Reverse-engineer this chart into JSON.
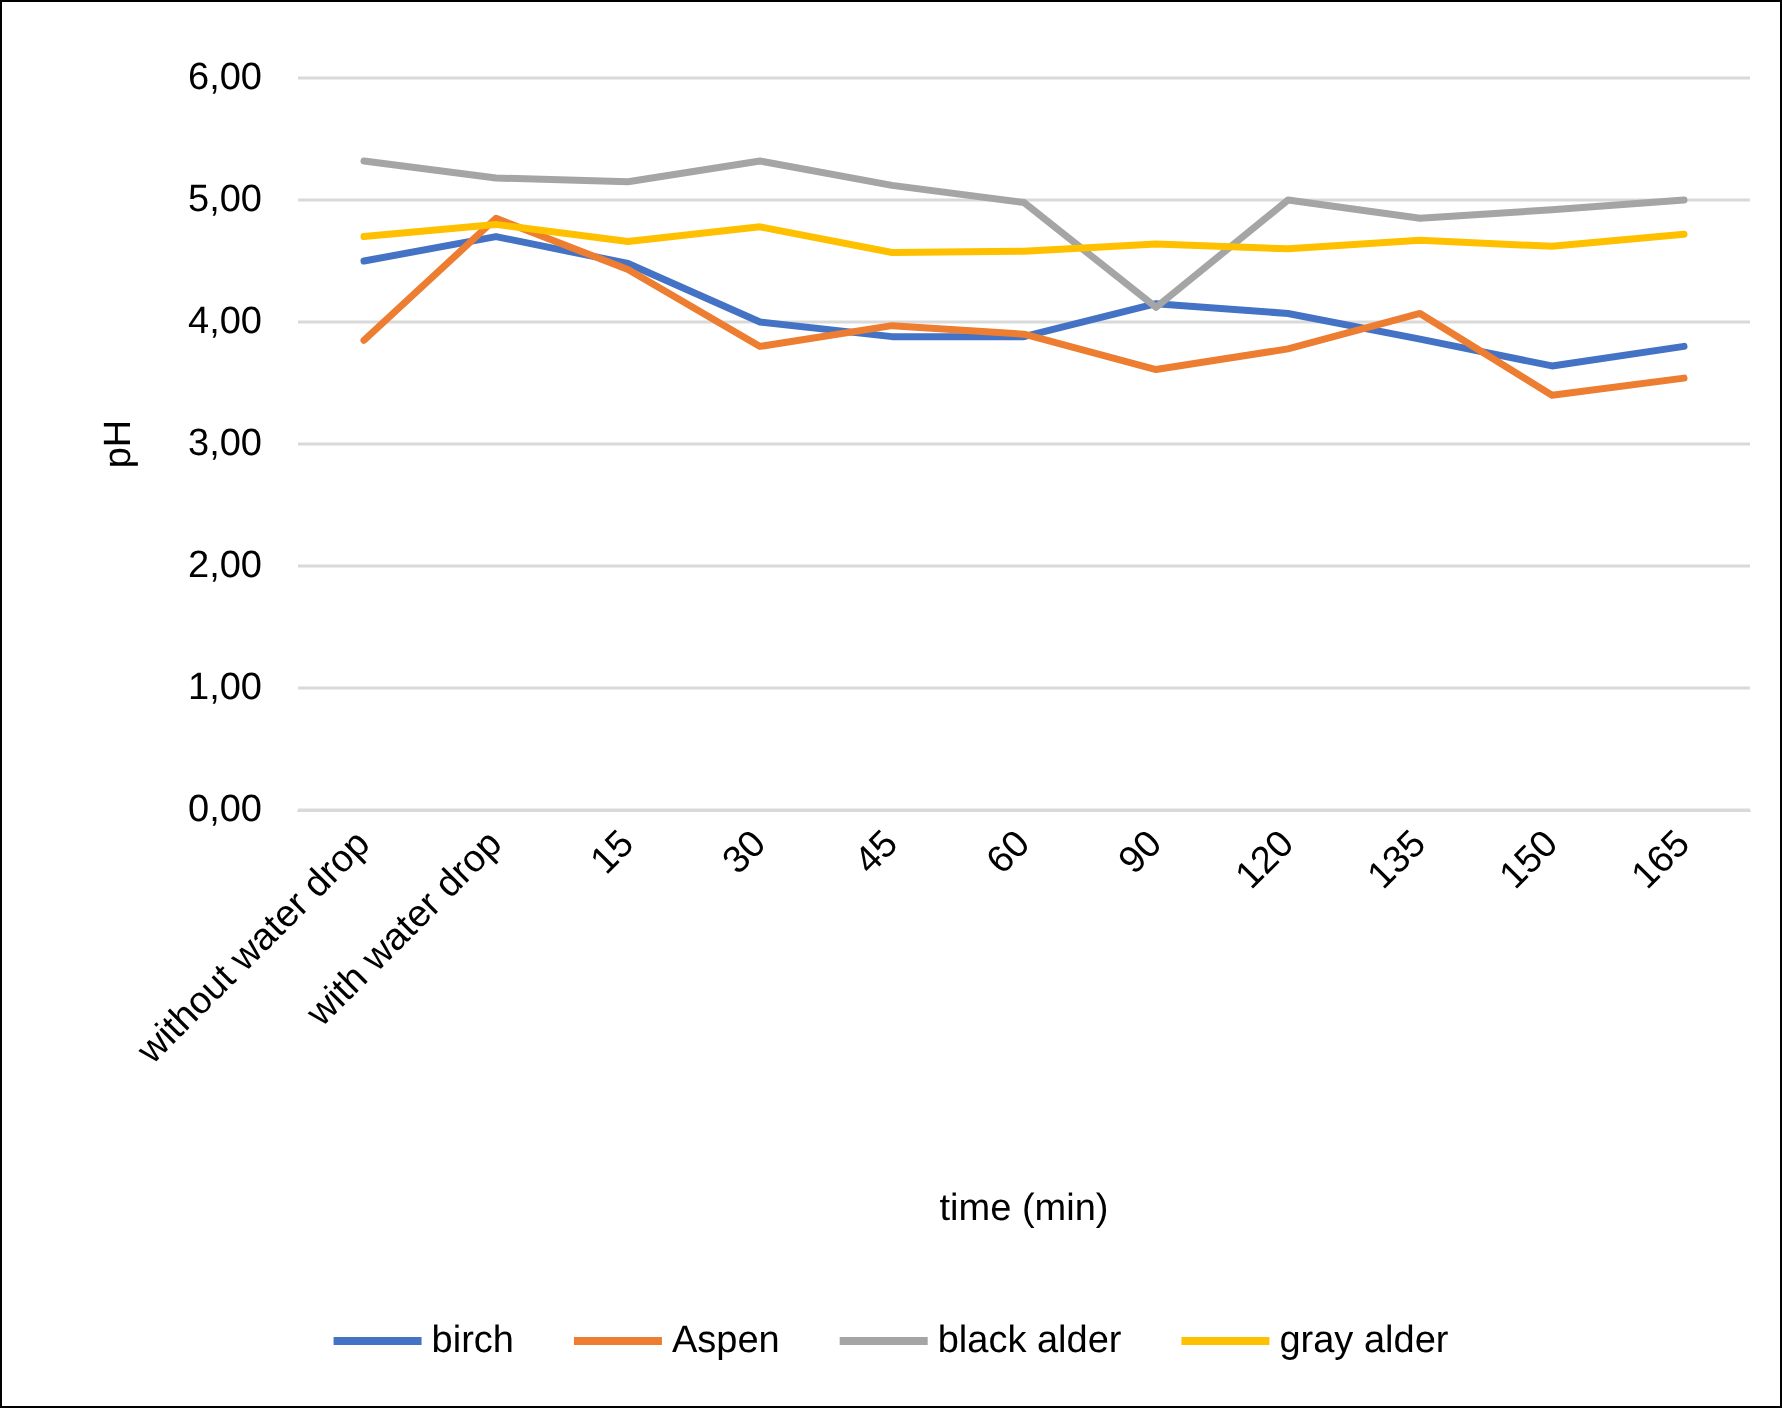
{
  "chart_data": {
    "type": "line",
    "xlabel": "time (min)",
    "ylabel": "pH",
    "categories": [
      "without water drop",
      "with water drop",
      "15",
      "30",
      "45",
      "60",
      "90",
      "120",
      "135",
      "150",
      "165"
    ],
    "series": [
      {
        "name": "birch",
        "color": "#4472c4",
        "values": [
          4.5,
          4.7,
          4.48,
          4.0,
          3.88,
          3.88,
          4.15,
          4.07,
          3.86,
          3.64,
          3.8
        ]
      },
      {
        "name": "Aspen",
        "color": "#ed7d31",
        "values": [
          3.85,
          4.85,
          4.43,
          3.8,
          3.97,
          3.9,
          3.61,
          3.78,
          4.07,
          3.4,
          3.54
        ]
      },
      {
        "name": "black alder",
        "color": "#a5a5a5",
        "values": [
          5.32,
          5.18,
          5.15,
          5.32,
          5.12,
          4.98,
          4.12,
          5.0,
          4.85,
          4.92,
          5.0
        ]
      },
      {
        "name": "gray alder",
        "color": "#ffc000",
        "values": [
          4.7,
          4.8,
          4.66,
          4.78,
          4.57,
          4.58,
          4.64,
          4.6,
          4.67,
          4.62,
          4.72
        ]
      }
    ],
    "ylim": [
      0,
      6
    ],
    "yticks": [
      {
        "value": 0,
        "label": "0,00"
      },
      {
        "value": 1,
        "label": "1,00"
      },
      {
        "value": 2,
        "label": "2,00"
      },
      {
        "value": 3,
        "label": "3,00"
      },
      {
        "value": 4,
        "label": "4,00"
      },
      {
        "value": 5,
        "label": "5,00"
      },
      {
        "value": 6,
        "label": "6,00"
      }
    ],
    "grid": "y",
    "legend": "bottom",
    "marker": "none",
    "line_style": "solid"
  }
}
